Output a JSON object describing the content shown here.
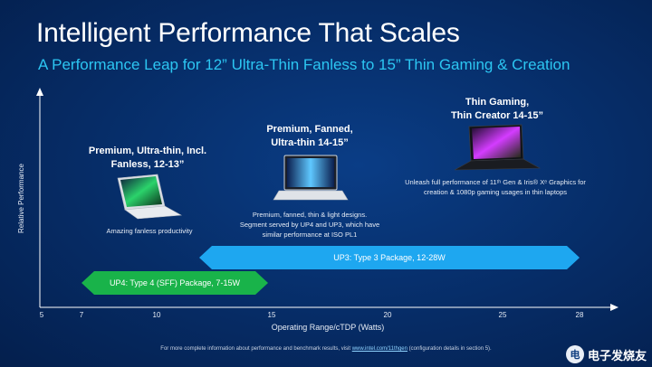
{
  "title": "Intelligent Performance That Scales",
  "subtitle": "A Performance Leap for 12” Ultra-Thin Fanless to 15” Thin Gaming & Creation",
  "axes": {
    "ylabel": "Relative Performance",
    "xlabel": "Operating Range/cTDP (Watts)",
    "xticks": [
      "5",
      "7",
      "10",
      "15",
      "20",
      "25",
      "28"
    ]
  },
  "segments": [
    {
      "title_lines": [
        "Premium, Ultra-thin, Incl.",
        "Fanless, 12-13”"
      ],
      "desc_lines": [
        "Amazing fanless productivity"
      ]
    },
    {
      "title_lines": [
        "Premium, Fanned,",
        "Ultra-thin 14-15”"
      ],
      "desc_lines": [
        "Premium, fanned, thin & light designs.",
        "Segment served by UP4 and UP3, which have",
        "similar performance at ISO PL1"
      ]
    },
    {
      "title_lines": [
        "Thin Gaming,",
        "Thin Creator 14-15”"
      ],
      "desc_lines": [
        "Unleash full performance of 11ᵗʰ Gen & Iris® Xᵉ Graphics for",
        "creation & 1080p gaming usages in thin laptops"
      ]
    }
  ],
  "arrows": {
    "up3": {
      "label": "UP3: Type 3 Package, 12-28W",
      "range_watts": [
        12,
        28
      ],
      "color": "#1ea7f0"
    },
    "up4": {
      "label": "UP4: Type 4 (SFF) Package, 7-15W",
      "range_watts": [
        7,
        15
      ],
      "color": "#19b34a"
    }
  },
  "footnote": {
    "before": "For more complete information about performance and benchmark results, visit ",
    "link": "www.intel.com/11thgen",
    "after": " (configuration details in section 5)."
  },
  "watermark": {
    "logo": "电",
    "text": "电子发烧友"
  },
  "colors": {
    "title": "#ffffff",
    "subtitle": "#2cc6f2",
    "background": "#062c66"
  }
}
